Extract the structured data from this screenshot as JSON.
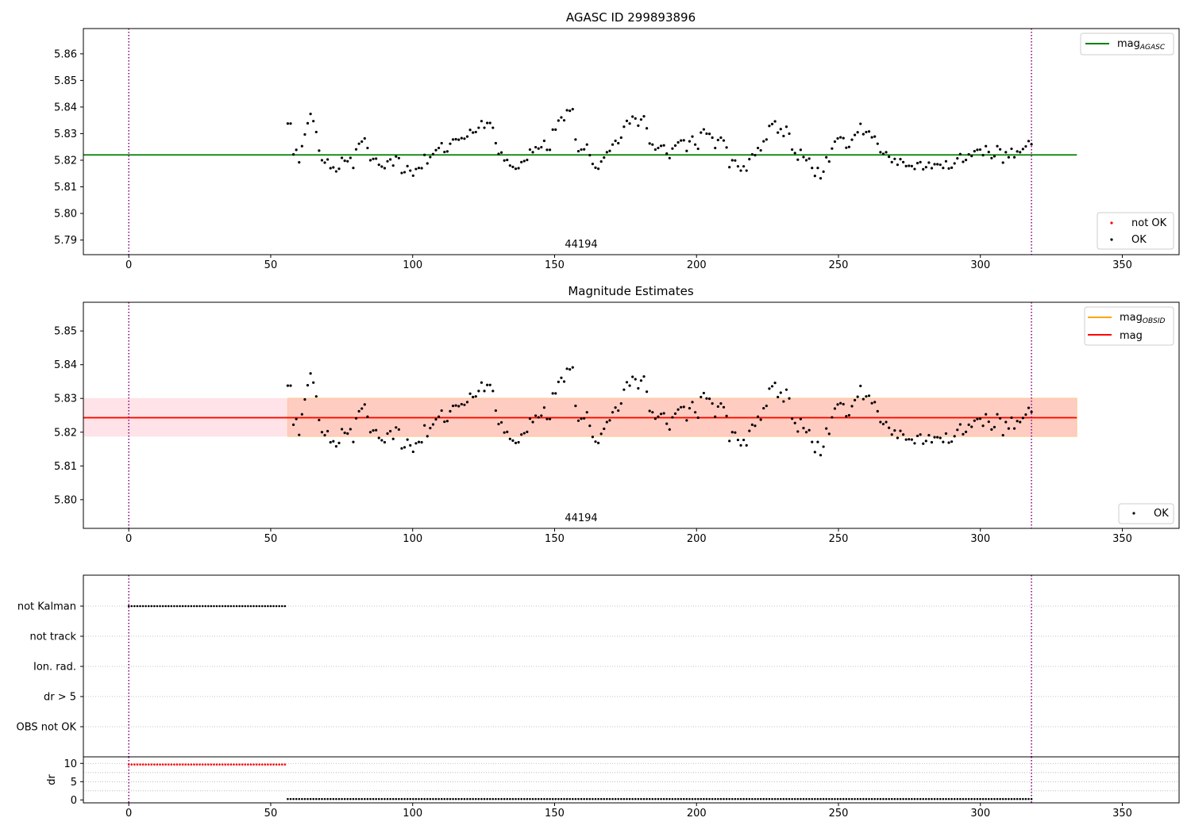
{
  "colors": {
    "agasc_line": "#008000",
    "obsid_line": "#ffa500",
    "mag_line": "#ff0000",
    "ok_points": "#000000",
    "not_ok_points": "#ff0000",
    "obs_marker": "#800080",
    "band_outer": "#ffc0cb",
    "band_inner": "#ffa07a"
  },
  "chart_data": [
    {
      "type": "scatter",
      "title": "AGASC ID 299893896",
      "annotation": "44194",
      "xlim": [
        -16,
        370
      ],
      "ylim": [
        5.7845,
        5.8695
      ],
      "xticks": [
        0,
        50,
        100,
        150,
        200,
        250,
        300,
        350
      ],
      "yticks": [
        5.79,
        5.8,
        5.81,
        5.82,
        5.83,
        5.84,
        5.85,
        5.86
      ],
      "ytick_labels": [
        "5.79",
        "5.80",
        "5.81",
        "5.82",
        "5.83",
        "5.84",
        "5.85",
        "5.86"
      ],
      "vlines": [
        0,
        318
      ],
      "hlines": [
        {
          "name": "mag_agasc",
          "y": 5.822,
          "x": [
            -16,
            334
          ]
        }
      ],
      "legend_lines": [
        {
          "label": "mag",
          "sub": "AGASC"
        }
      ],
      "legend_points": [
        {
          "label": "not OK"
        },
        {
          "label": "OK"
        }
      ],
      "series": [
        {
          "name": "OK",
          "x_start": 56,
          "x_end": 318,
          "values": "mag_samples"
        }
      ]
    },
    {
      "type": "scatter",
      "title": "Magnitude Estimates",
      "annotation": "44194",
      "xlim": [
        -16,
        370
      ],
      "ylim": [
        5.7915,
        5.8585
      ],
      "xticks": [
        0,
        50,
        100,
        150,
        200,
        250,
        300,
        350
      ],
      "yticks": [
        5.8,
        5.81,
        5.82,
        5.83,
        5.84,
        5.85
      ],
      "ytick_labels": [
        "5.80",
        "5.81",
        "5.82",
        "5.83",
        "5.84",
        "5.85"
      ],
      "vlines": [
        0,
        318
      ],
      "hlines": [
        {
          "name": "mag_obsid",
          "y": 5.8243,
          "x": [
            -16,
            334
          ]
        },
        {
          "name": "mag",
          "y": 5.8243,
          "x": [
            -16,
            334
          ]
        }
      ],
      "bands": [
        {
          "name": "mag_range",
          "y": [
            5.8187,
            5.8301
          ],
          "x": [
            -16,
            334
          ]
        },
        {
          "name": "obsid_range",
          "y": [
            5.8187,
            5.8301
          ],
          "x": [
            56,
            334
          ]
        }
      ],
      "legend_lines": [
        {
          "label": "mag",
          "sub": "OBSID"
        },
        {
          "label": "mag",
          "sub": ""
        }
      ],
      "legend_points": [
        {
          "label": "OK"
        }
      ],
      "series": [
        {
          "name": "OK",
          "x_start": 56,
          "x_end": 318,
          "values": "mag_samples"
        }
      ]
    },
    {
      "type": "scatter",
      "xlim": [
        -16,
        370
      ],
      "categories": [
        "not Kalman",
        "not track",
        "Ion. rad.",
        "dr > 5",
        "OBS not OK"
      ],
      "flag_points": [
        {
          "category": "not Kalman",
          "x_start": 0,
          "x_end": 55
        }
      ],
      "vlines": [
        0,
        318
      ]
    },
    {
      "type": "scatter",
      "xlim": [
        -16,
        370
      ],
      "ylim": [
        -0.8,
        11.8
      ],
      "ylabel": "dr",
      "xticks": [
        0,
        50,
        100,
        150,
        200,
        250,
        300,
        350
      ],
      "yticks": [
        0,
        5,
        10
      ],
      "vlines": [
        0,
        318
      ],
      "series": [
        {
          "name": "not OK",
          "x_start": 0,
          "x_end": 55,
          "value": 9.7
        },
        {
          "name": "OK",
          "x_start": 56,
          "x_end": 318,
          "value": 0.25
        }
      ]
    }
  ],
  "mag_samples": [
    5.8338,
    5.8338,
    5.8222,
    5.8239,
    5.8192,
    5.8253,
    5.8297,
    5.8339,
    5.8374,
    5.8347,
    5.8306,
    5.8236,
    5.82,
    5.8191,
    5.8203,
    5.817,
    5.8173,
    5.8158,
    5.8168,
    5.8209,
    5.8198,
    5.8196,
    5.8209,
    5.8171,
    5.8241,
    5.8262,
    5.827,
    5.8282,
    5.8246,
    5.82,
    5.8205,
    5.8206,
    5.8183,
    5.8176,
    5.817,
    5.8196,
    5.8203,
    5.818,
    5.8214,
    5.8208,
    5.8152,
    5.8155,
    5.8178,
    5.8161,
    5.8142,
    5.8167,
    5.8171,
    5.817,
    5.822,
    5.8188,
    5.8212,
    5.8223,
    5.8238,
    5.8246,
    5.8264,
    5.8231,
    5.8233,
    5.8262,
    5.8278,
    5.8279,
    5.8277,
    5.8283,
    5.8281,
    5.8289,
    5.8314,
    5.8304,
    5.8306,
    5.8322,
    5.8347,
    5.8322,
    5.834,
    5.834,
    5.8322,
    5.8264,
    5.8224,
    5.8229,
    5.8199,
    5.8201,
    5.818,
    5.8175,
    5.8168,
    5.817,
    5.8193,
    5.8197,
    5.8201,
    5.824,
    5.823,
    5.8249,
    5.8244,
    5.8249,
    5.8273,
    5.8239,
    5.8239,
    5.8315,
    5.8315,
    5.8349,
    5.8361,
    5.835,
    5.8388,
    5.8386,
    5.8392,
    5.8278,
    5.8234,
    5.824,
    5.8241,
    5.8259,
    5.8219,
    5.8186,
    5.8172,
    5.8168,
    5.8195,
    5.821,
    5.823,
    5.8235,
    5.8259,
    5.8273,
    5.8264,
    5.8285,
    5.8326,
    5.8348,
    5.8338,
    5.8364,
    5.8357,
    5.833,
    5.8353,
    5.8365,
    5.832,
    5.8263,
    5.8259,
    5.824,
    5.8246,
    5.8254,
    5.8256,
    5.8225,
    5.8208,
    5.8244,
    5.8255,
    5.8267,
    5.8274,
    5.8275,
    5.8235,
    5.8271,
    5.8289,
    5.8259,
    5.8243,
    5.8304,
    5.8316,
    5.83,
    5.8299,
    5.8285,
    5.8246,
    5.8276,
    5.8285,
    5.8274,
    5.8248,
    5.8174,
    5.82,
    5.8199,
    5.8177,
    5.8161,
    5.8177,
    5.8161,
    5.8204,
    5.8222,
    5.8219,
    5.8246,
    5.8237,
    5.8271,
    5.8278,
    5.8329,
    5.8336,
    5.8346,
    5.8304,
    5.8317,
    5.8291,
    5.8326,
    5.83,
    5.824,
    5.8227,
    5.8202,
    5.8239,
    5.8212,
    5.82,
    5.8206,
    5.8171,
    5.8141,
    5.8171,
    5.8132,
    5.8157,
    5.8211,
    5.8195,
    5.8244,
    5.827,
    5.8282,
    5.8286,
    5.8283,
    5.8247,
    5.825,
    5.8277,
    5.8295,
    5.8305,
    5.8337,
    5.8298,
    5.8306,
    5.8308,
    5.8286,
    5.8289,
    5.8262,
    5.823,
    5.8224,
    5.823,
    5.8213,
    5.8193,
    5.8205,
    5.8183,
    5.8204,
    5.8193,
    5.8178,
    5.8179,
    5.8178,
    5.8167,
    5.8189,
    5.8193,
    5.8166,
    5.8174,
    5.8191,
    5.817,
    5.8185,
    5.8185,
    5.8183,
    5.8171,
    5.8196,
    5.8169,
    5.8172,
    5.8188,
    5.8207,
    5.8223,
    5.8194,
    5.8201,
    5.8222,
    5.8216,
    5.8234,
    5.8239,
    5.824,
    5.8219,
    5.8253,
    5.8231,
    5.8208,
    5.8215,
    5.8253,
    5.8241,
    5.8191,
    5.823,
    5.8211,
    5.8243,
    5.8211,
    5.8233,
    5.823,
    5.8242,
    5.8252,
    5.8272,
    5.826
  ]
}
